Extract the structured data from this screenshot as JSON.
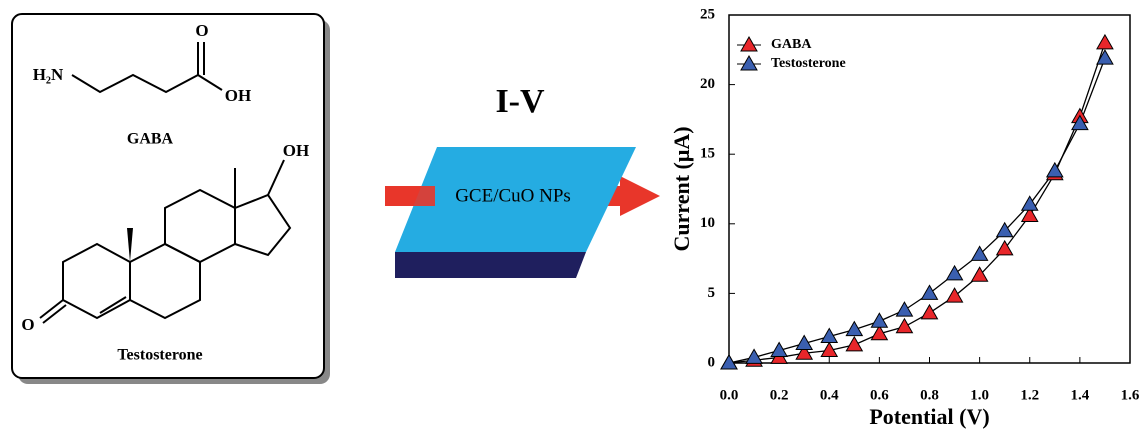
{
  "diagram": {
    "gaba": {
      "amine": "H₂N",
      "carbonyl": "O",
      "hydroxyl": "OH",
      "label": "GABA"
    },
    "testosterone": {
      "hydroxyl": "OH",
      "ketone": "O",
      "label": "Testosterone"
    },
    "method": "I-V",
    "electrode": "GCE/CuO NPs"
  },
  "chart_data": {
    "type": "line",
    "xlabel": "Potential (V)",
    "ylabel": "Current (μA)",
    "x": [
      0,
      0.1,
      0.2,
      0.3,
      0.4,
      0.5,
      0.6,
      0.7,
      0.8,
      0.9,
      1,
      1.1,
      1.2,
      1.3,
      1.4,
      1.5
    ],
    "series": [
      {
        "name": "GABA",
        "color": "#e8262a",
        "values": [
          0,
          0.2,
          0.4,
          0.7,
          0.9,
          1.3,
          2.1,
          2.6,
          3.6,
          4.8,
          6.3,
          8.2,
          10.6,
          13.6,
          17.7,
          23.0
        ]
      },
      {
        "name": "Testosterone",
        "color": "#3a5fb0",
        "values": [
          0,
          0.4,
          0.9,
          1.4,
          1.9,
          2.4,
          3.0,
          3.8,
          5.0,
          6.4,
          7.8,
          9.5,
          11.4,
          13.8,
          17.2,
          21.9
        ]
      }
    ],
    "xlim": [
      0,
      1.6
    ],
    "xticks": [
      {
        "value": 0,
        "label": "0.0"
      },
      0.2,
      0.4,
      0.6,
      0.8,
      {
        "value": 1,
        "label": "1.0"
      },
      1.2,
      1.4,
      1.6
    ],
    "ylim": [
      0,
      25
    ],
    "yticks": [
      0,
      5,
      10,
      15,
      20,
      25
    ],
    "legend": "upper left",
    "marker": "triangle"
  }
}
